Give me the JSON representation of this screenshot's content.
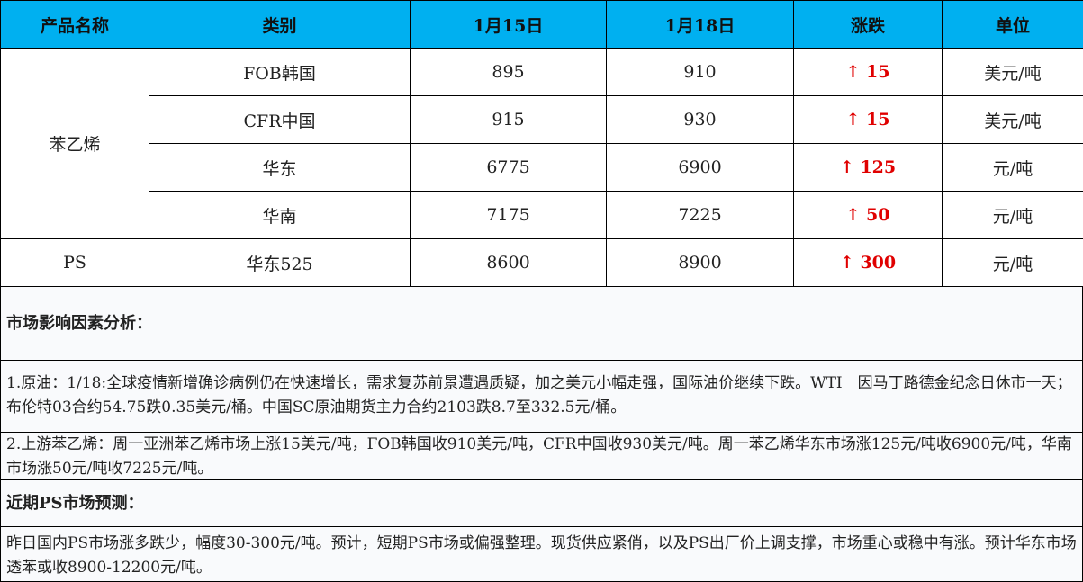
{
  "table": {
    "headers": [
      "产品名称",
      "类别",
      "1月15日",
      "1月18日",
      "涨跌",
      "单位"
    ],
    "rows": [
      {
        "product": "苯乙烯",
        "category": "FOB韩国",
        "d1": "895",
        "d2": "910",
        "change": "15",
        "unit": "美元/吨"
      },
      {
        "category": "CFR中国",
        "d1": "915",
        "d2": "930",
        "change": "15",
        "unit": "美元/吨"
      },
      {
        "category": "华东",
        "d1": "6775",
        "d2": "6900",
        "change": "125",
        "unit": "元/吨"
      },
      {
        "category": "华南",
        "d1": "7175",
        "d2": "7225",
        "change": "50",
        "unit": "元/吨"
      },
      {
        "product": "PS",
        "category": "华东525",
        "d1": "8600",
        "d2": "8900",
        "change": "300",
        "unit": "元/吨"
      }
    ],
    "up_arrow": "↑",
    "up_color": "#e00000",
    "header_color": "#00B0F0"
  },
  "analysis": {
    "title": "市场影响因素分析：",
    "item1": "1.原油：1/18:全球疫情新增确诊病例仍在快速增长，需求复苏前景遭遇质疑，加之美元小幅走强，国际油价继续下跌。WTI　因马丁路德金纪念日休市一天；布伦特03合约54.75跌0.35美元/桶。中国SC原油期货主力合约2103跌8.7至332.5元/桶。",
    "item2": "2.上游苯乙烯：周一亚洲苯乙烯市场上涨15美元/吨，FOB韩国收910美元/吨，CFR中国收930美元/吨。周一苯乙烯华东市场涨125元/吨收6900元/吨，华南市场涨50元/吨收7225元/吨。"
  },
  "forecast": {
    "title": "近期PS市场预测：",
    "text": "昨日国内PS市场涨多跌少，幅度30-300元/吨。预计，短期PS市场或偏强整理。现货供应紧俏，以及PS出厂价上调支撑，市场重心或稳中有涨。预计华东市场透苯或收8900-12200元/吨。"
  }
}
